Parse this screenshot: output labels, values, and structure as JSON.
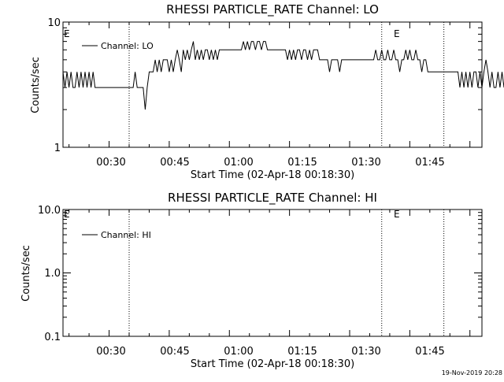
{
  "chart_data": [
    {
      "type": "line",
      "title": "RHESSI PARTICLE_RATE Channel: LO",
      "xlabel": "Start Time (02-Apr-18 00:18:30)",
      "ylabel": "Counts/sec",
      "x_range": [
        "00:18:30",
        "02:03:00"
      ],
      "ylim": [
        1,
        10
      ],
      "y_scale": "log",
      "y_ticks": [
        "1",
        "10"
      ],
      "x_ticks": [
        "00:30",
        "00:45",
        "01:00",
        "01:15",
        "01:30",
        "01:45"
      ],
      "event_markers": [
        {
          "time": "00:35:00",
          "label": ""
        },
        {
          "time": "01:38:00",
          "label": "E"
        },
        {
          "time": "01:53:30",
          "label": ""
        }
      ],
      "corner_label": "E",
      "legend": {
        "entry": "Channel: LO",
        "position": "top-left"
      },
      "series": [
        {
          "name": "Channel: LO",
          "x_start": "00:18:30",
          "x_step_seconds": 30,
          "y": [
            4,
            3,
            4,
            3,
            4,
            3,
            3,
            4,
            3,
            4,
            3,
            4,
            3,
            4,
            3,
            4,
            3,
            3,
            3,
            3,
            3,
            3,
            3,
            3,
            3,
            3,
            3,
            3,
            3,
            3,
            3,
            3,
            3,
            3,
            3,
            3,
            4,
            3,
            3,
            3,
            3,
            2,
            3,
            4,
            4,
            4,
            5,
            4,
            5,
            4,
            5,
            5,
            5,
            4,
            5,
            4,
            5,
            6,
            5,
            4,
            6,
            5,
            6,
            5,
            6,
            7,
            5,
            6,
            5,
            6,
            5,
            6,
            6,
            5,
            6,
            5,
            6,
            5,
            6,
            6,
            6,
            6,
            6,
            6,
            6,
            6,
            6,
            6,
            6,
            6,
            7,
            6,
            7,
            6,
            7,
            7,
            6,
            7,
            7,
            6,
            7,
            7,
            6,
            6,
            6,
            6,
            6,
            6,
            6,
            6,
            6,
            6,
            5,
            6,
            5,
            6,
            5,
            6,
            6,
            5,
            6,
            6,
            5,
            6,
            5,
            6,
            6,
            6,
            5,
            5,
            5,
            5,
            5,
            4,
            5,
            5,
            5,
            5,
            4,
            5,
            5,
            5,
            5,
            5,
            5,
            5,
            5,
            5,
            5,
            5,
            5,
            5,
            5,
            5,
            5,
            5,
            6,
            5,
            5,
            6,
            5,
            5,
            6,
            5,
            5,
            6,
            5,
            5,
            4,
            5,
            5,
            6,
            5,
            6,
            5,
            5,
            6,
            5,
            5,
            4,
            5,
            5,
            4,
            4,
            4,
            4,
            4,
            4,
            4,
            4,
            4,
            4,
            4,
            4,
            4,
            4,
            4,
            4,
            3,
            4,
            3,
            4,
            3,
            4,
            3,
            4,
            4,
            3,
            4,
            3,
            4,
            5,
            4,
            3,
            4,
            3,
            3,
            4,
            3,
            4,
            3,
            5,
            4,
            3,
            4,
            4
          ]
        }
      ]
    },
    {
      "type": "line",
      "title": "RHESSI PARTICLE_RATE Channel: HI",
      "xlabel": "Start Time (02-Apr-18 00:18:30)",
      "ylabel": "Counts/sec",
      "x_range": [
        "00:18:30",
        "02:03:00"
      ],
      "ylim": [
        0.1,
        10
      ],
      "y_scale": "log",
      "y_ticks": [
        "0.1",
        "1.0",
        "10.0"
      ],
      "x_ticks": [
        "00:30",
        "00:45",
        "01:00",
        "01:15",
        "01:30",
        "01:45"
      ],
      "event_markers": [
        {
          "time": "00:35:00",
          "label": ""
        },
        {
          "time": "01:38:00",
          "label": "E"
        },
        {
          "time": "01:53:30",
          "label": ""
        }
      ],
      "corner_label": "E",
      "legend": {
        "entry": "Channel: HI",
        "position": "top-left"
      },
      "series": [
        {
          "name": "Channel: HI",
          "x_start": "00:18:30",
          "x_step_seconds": 30,
          "y": []
        }
      ]
    }
  ],
  "footer": {
    "timestamp": "19-Nov-2019 20:28"
  }
}
